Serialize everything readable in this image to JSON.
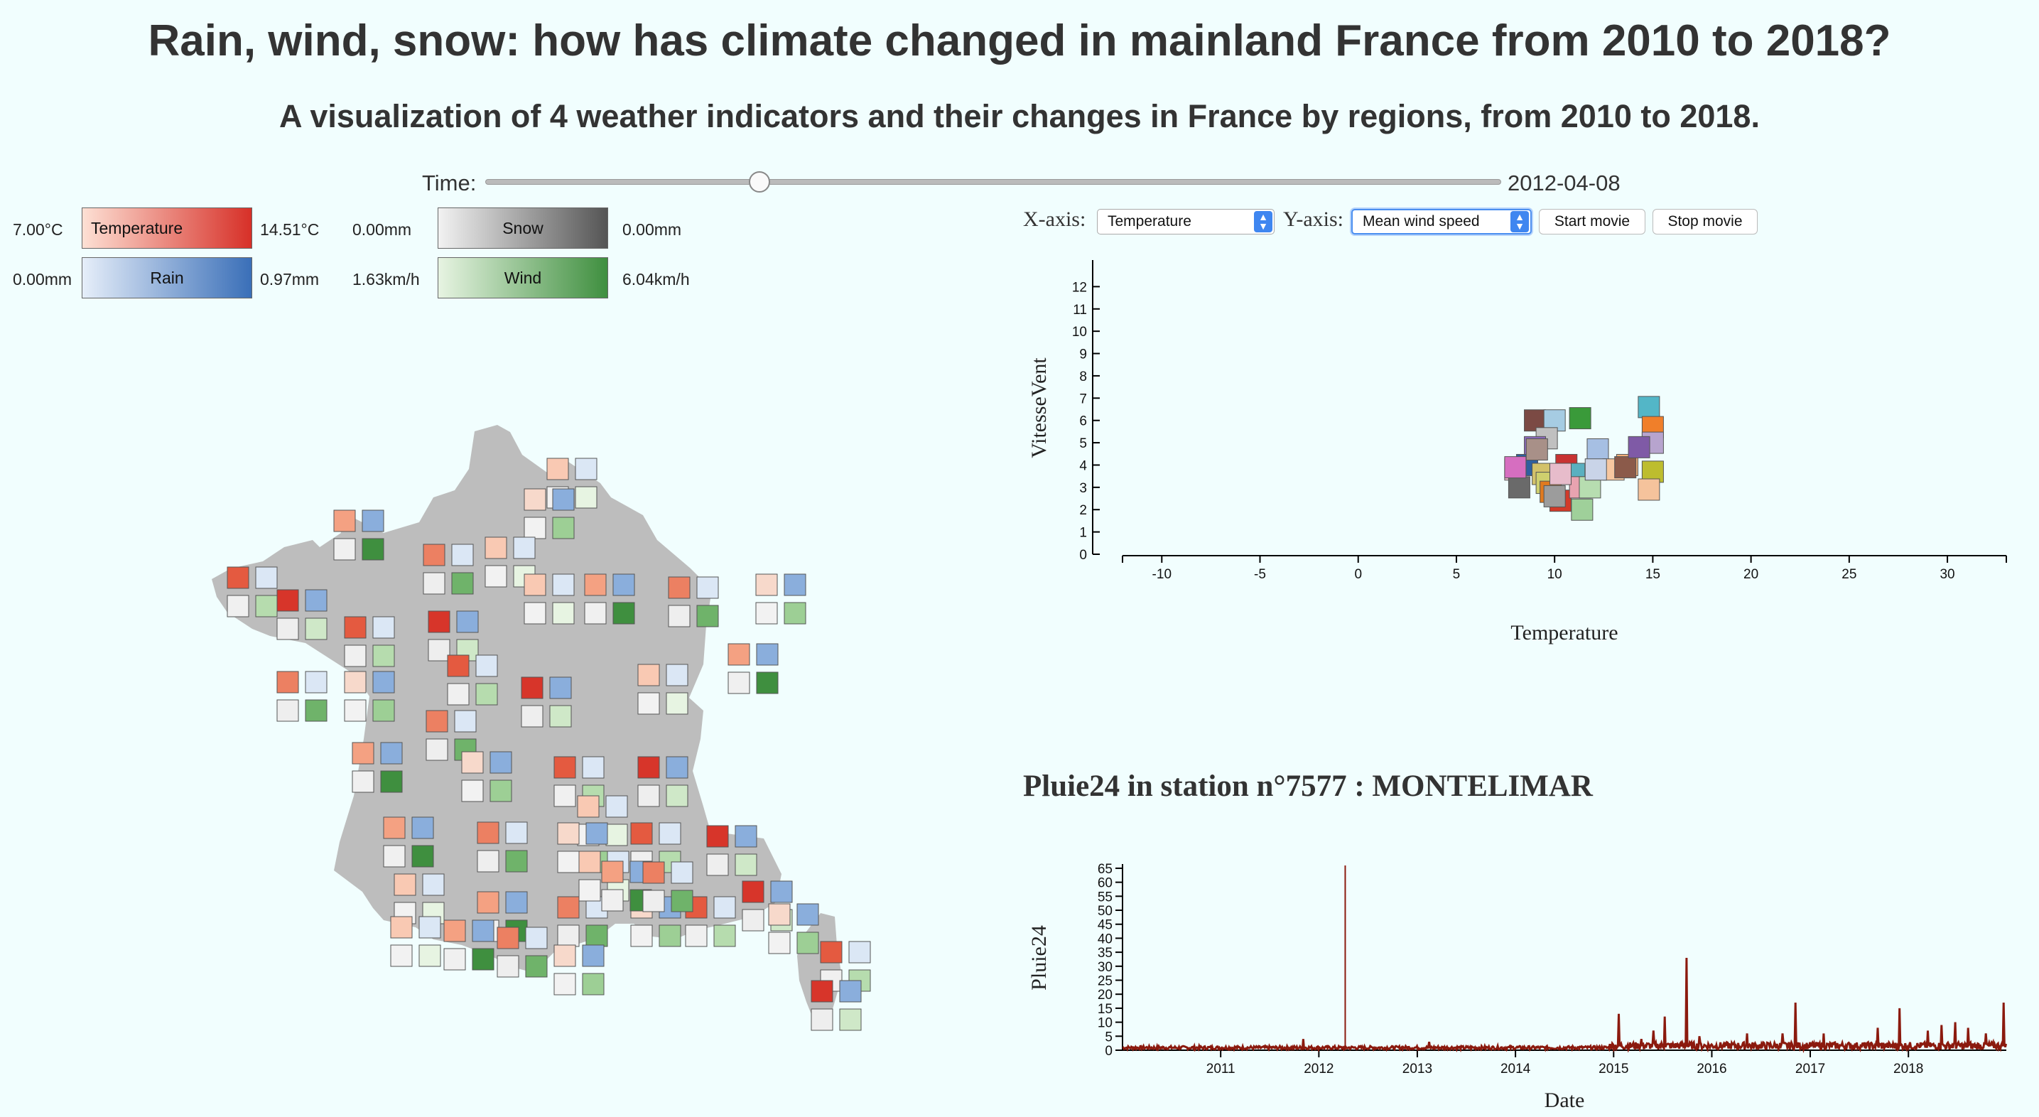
{
  "header": {
    "title": "Rain, wind, snow: how has climate changed in mainland France from 2010 to 2018?",
    "subtitle": "A visualization of 4 weather indicators and their changes in France by regions, from 2010 to 2018."
  },
  "time_control": {
    "label": "Time:",
    "value": "2012-04-08",
    "slider_fraction": 0.27
  },
  "legends": {
    "temperature": {
      "min": "7.00°C",
      "label": "Temperature",
      "max": "14.51°C",
      "color_from": "#fde0d4",
      "color_to": "#d73028"
    },
    "rain": {
      "min": "0.00mm",
      "label": "Rain",
      "max": "0.97mm",
      "color_from": "#e6eef9",
      "color_to": "#3a6fb8"
    },
    "snow": {
      "min": "0.00mm",
      "label": "Snow",
      "max": "0.00mm",
      "color_from": "#f2f2f2",
      "color_to": "#555555"
    },
    "wind": {
      "min": "1.63km/h",
      "label": "Wind",
      "max": "6.04km/h",
      "color_from": "#e7f4e2",
      "color_to": "#3f8f3f"
    }
  },
  "controls": {
    "x_label": "X-axis:",
    "x_selected": "Temperature",
    "y_label": "Y-axis:",
    "y_selected": "Mean wind speed",
    "start_button": "Start movie",
    "stop_button": "Stop movie",
    "arrow_up": "▲",
    "arrow_down": "▼"
  },
  "colors": {
    "background": "#f1fefe",
    "map_land": "#bdbdbd",
    "rain_line": "#8b1a0e",
    "accent": "#3f86f0"
  },
  "chart_data": [
    {
      "type": "scatter",
      "xlabel": "Temperature",
      "ylabel": "VitesseVent",
      "xlim": [
        -12,
        33
      ],
      "ylim": [
        0,
        13
      ],
      "xticks": [
        -10,
        -5,
        0,
        5,
        10,
        15,
        20,
        25,
        30
      ],
      "yticks": [
        0,
        1,
        2,
        3,
        4,
        5,
        6,
        7,
        8,
        9,
        10,
        11,
        12
      ],
      "points": [
        {
          "x": 9.0,
          "y": 6.0,
          "color": "#7b4a44"
        },
        {
          "x": 10.0,
          "y": 6.0,
          "color": "#a6cce3"
        },
        {
          "x": 11.3,
          "y": 6.1,
          "color": "#3a9a3a"
        },
        {
          "x": 14.8,
          "y": 6.6,
          "color": "#53b6c7"
        },
        {
          "x": 15.0,
          "y": 5.7,
          "color": "#f07f2a"
        },
        {
          "x": 15.0,
          "y": 5.0,
          "color": "#b7a4ce"
        },
        {
          "x": 12.2,
          "y": 4.7,
          "color": "#a6bfe3"
        },
        {
          "x": 9.6,
          "y": 5.2,
          "color": "#c0c0c0"
        },
        {
          "x": 9.0,
          "y": 4.8,
          "color": "#8b6abb"
        },
        {
          "x": 8.6,
          "y": 4.0,
          "color": "#2f5f9e"
        },
        {
          "x": 8.0,
          "y": 3.8,
          "color": "#e7b8c7"
        },
        {
          "x": 8.2,
          "y": 3.0,
          "color": "#6a6a6a"
        },
        {
          "x": 9.1,
          "y": 4.7,
          "color": "#a89088"
        },
        {
          "x": 9.4,
          "y": 3.6,
          "color": "#d3c26a"
        },
        {
          "x": 9.6,
          "y": 3.2,
          "color": "#cfd06e"
        },
        {
          "x": 9.8,
          "y": 2.8,
          "color": "#e07a1f"
        },
        {
          "x": 10.3,
          "y": 2.4,
          "color": "#d23a2a"
        },
        {
          "x": 10.6,
          "y": 4.0,
          "color": "#c83232"
        },
        {
          "x": 11.0,
          "y": 3.6,
          "color": "#5ab0c0"
        },
        {
          "x": 11.3,
          "y": 3.0,
          "color": "#e8a3b0"
        },
        {
          "x": 11.8,
          "y": 3.0,
          "color": "#b7ddb0"
        },
        {
          "x": 11.4,
          "y": 2.0,
          "color": "#9fd09a"
        },
        {
          "x": 10.0,
          "y": 2.6,
          "color": "#9c9c9c"
        },
        {
          "x": 13.0,
          "y": 3.8,
          "color": "#f7c7a0"
        },
        {
          "x": 13.7,
          "y": 4.0,
          "color": "#f5b07a"
        },
        {
          "x": 13.6,
          "y": 3.9,
          "color": "#8b5a4a"
        },
        {
          "x": 14.3,
          "y": 4.8,
          "color": "#7f5aa6"
        },
        {
          "x": 15.0,
          "y": 3.7,
          "color": "#bdbd2e"
        },
        {
          "x": 14.8,
          "y": 2.9,
          "color": "#f5c39c"
        },
        {
          "x": 8.0,
          "y": 3.9,
          "color": "#d66ec0"
        },
        {
          "x": 10.3,
          "y": 3.6,
          "color": "#e7bccb"
        },
        {
          "x": 12.1,
          "y": 3.8,
          "color": "#c9d4e8"
        }
      ]
    },
    {
      "type": "line",
      "title": "Pluie24 in station n°7577 : MONTELIMAR",
      "xlabel": "Date",
      "ylabel": "Pluie24",
      "xlim": [
        "2010-01-01",
        "2018-12-31"
      ],
      "ylim": [
        0,
        66
      ],
      "xticks": [
        "2011",
        "2012",
        "2013",
        "2014",
        "2015",
        "2016",
        "2017",
        "2018"
      ],
      "yticks": [
        0,
        5,
        10,
        15,
        20,
        25,
        30,
        35,
        40,
        45,
        50,
        55,
        60,
        65
      ],
      "marker_date": "2012-04-08",
      "peaks": [
        {
          "x": "2011-11-05",
          "y": 4
        },
        {
          "x": "2013-02-15",
          "y": 3
        },
        {
          "x": "2015-01-20",
          "y": 13
        },
        {
          "x": "2015-04-15",
          "y": 4
        },
        {
          "x": "2015-05-30",
          "y": 7
        },
        {
          "x": "2015-07-10",
          "y": 12
        },
        {
          "x": "2015-09-28",
          "y": 33
        },
        {
          "x": "2015-11-15",
          "y": 5
        },
        {
          "x": "2016-05-10",
          "y": 6
        },
        {
          "x": "2016-09-20",
          "y": 6
        },
        {
          "x": "2016-11-08",
          "y": 17
        },
        {
          "x": "2017-02-20",
          "y": 6
        },
        {
          "x": "2017-09-10",
          "y": 8
        },
        {
          "x": "2017-11-30",
          "y": 15
        },
        {
          "x": "2018-03-15",
          "y": 7
        },
        {
          "x": "2018-05-05",
          "y": 9
        },
        {
          "x": "2018-06-25",
          "y": 10
        },
        {
          "x": "2018-08-10",
          "y": 8
        },
        {
          "x": "2018-10-15",
          "y": 6
        },
        {
          "x": "2018-12-20",
          "y": 17
        }
      ]
    }
  ]
}
